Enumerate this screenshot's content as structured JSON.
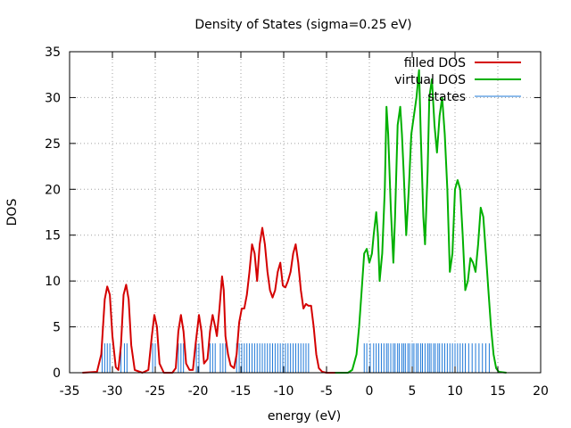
{
  "chart_data": {
    "type": "line",
    "title": "Density of States (sigma=0.25 eV)",
    "xlabel": "energy (eV)",
    "ylabel": "DOS",
    "xlim": [
      -35,
      20
    ],
    "ylim": [
      0,
      35
    ],
    "xticks": [
      -35,
      -30,
      -25,
      -20,
      -15,
      -10,
      -5,
      0,
      5,
      10,
      15,
      20
    ],
    "yticks": [
      0,
      5,
      10,
      15,
      20,
      25,
      30,
      35
    ],
    "grid": true,
    "legend_position": "top-right",
    "series": [
      {
        "name": "filled DOS",
        "color": "#d40000",
        "points": [
          [
            -33.5,
            0
          ],
          [
            -31.8,
            0.1
          ],
          [
            -31.3,
            2
          ],
          [
            -30.9,
            8
          ],
          [
            -30.6,
            9.4
          ],
          [
            -30.3,
            8.5
          ],
          [
            -30.0,
            4
          ],
          [
            -29.6,
            0.6
          ],
          [
            -29.3,
            0.3
          ],
          [
            -29.0,
            3
          ],
          [
            -28.7,
            8.5
          ],
          [
            -28.4,
            9.6
          ],
          [
            -28.1,
            8
          ],
          [
            -27.8,
            3
          ],
          [
            -27.4,
            0.3
          ],
          [
            -26.5,
            0
          ],
          [
            -25.8,
            0.3
          ],
          [
            -25.4,
            4
          ],
          [
            -25.1,
            6.3
          ],
          [
            -24.8,
            5
          ],
          [
            -24.5,
            1
          ],
          [
            -24.0,
            0
          ],
          [
            -23.0,
            0
          ],
          [
            -22.6,
            0.5
          ],
          [
            -22.3,
            4.5
          ],
          [
            -22.0,
            6.3
          ],
          [
            -21.7,
            4.5
          ],
          [
            -21.4,
            1
          ],
          [
            -21.0,
            0.3
          ],
          [
            -20.6,
            0.3
          ],
          [
            -20.3,
            3
          ],
          [
            -19.9,
            6.3
          ],
          [
            -19.6,
            4.5
          ],
          [
            -19.3,
            1
          ],
          [
            -18.9,
            1.5
          ],
          [
            -18.6,
            4.5
          ],
          [
            -18.3,
            6.3
          ],
          [
            -18.0,
            5
          ],
          [
            -17.8,
            4
          ],
          [
            -17.5,
            7
          ],
          [
            -17.2,
            10.5
          ],
          [
            -17.0,
            9
          ],
          [
            -16.8,
            4
          ],
          [
            -16.5,
            2
          ],
          [
            -16.2,
            0.8
          ],
          [
            -15.8,
            0.5
          ],
          [
            -15.5,
            2
          ],
          [
            -15.2,
            5.5
          ],
          [
            -14.9,
            7
          ],
          [
            -14.6,
            7
          ],
          [
            -14.3,
            8.5
          ],
          [
            -14.0,
            11
          ],
          [
            -13.7,
            14
          ],
          [
            -13.4,
            13
          ],
          [
            -13.1,
            10
          ],
          [
            -12.8,
            14
          ],
          [
            -12.5,
            15.8
          ],
          [
            -12.2,
            14
          ],
          [
            -11.9,
            11
          ],
          [
            -11.6,
            9
          ],
          [
            -11.3,
            8.2
          ],
          [
            -11.0,
            9
          ],
          [
            -10.7,
            11
          ],
          [
            -10.4,
            12
          ],
          [
            -10.1,
            9.5
          ],
          [
            -9.8,
            9.3
          ],
          [
            -9.5,
            10
          ],
          [
            -9.2,
            11
          ],
          [
            -8.9,
            13
          ],
          [
            -8.6,
            14
          ],
          [
            -8.3,
            12
          ],
          [
            -8.0,
            9
          ],
          [
            -7.7,
            7
          ],
          [
            -7.4,
            7.5
          ],
          [
            -7.1,
            7.3
          ],
          [
            -6.8,
            7.3
          ],
          [
            -6.5,
            5
          ],
          [
            -6.2,
            2
          ],
          [
            -5.9,
            0.5
          ],
          [
            -5.5,
            0.1
          ],
          [
            -5.0,
            0
          ],
          [
            -3.0,
            0
          ]
        ]
      },
      {
        "name": "virtual DOS",
        "color": "#00b000",
        "points": [
          [
            -4.0,
            0
          ],
          [
            -2.5,
            0
          ],
          [
            -2.0,
            0.3
          ],
          [
            -1.5,
            2
          ],
          [
            -1.2,
            5
          ],
          [
            -0.9,
            9
          ],
          [
            -0.6,
            13
          ],
          [
            -0.3,
            13.5
          ],
          [
            0.0,
            12
          ],
          [
            0.3,
            13
          ],
          [
            0.5,
            15
          ],
          [
            0.8,
            17.5
          ],
          [
            1.0,
            15
          ],
          [
            1.2,
            10
          ],
          [
            1.5,
            13
          ],
          [
            1.8,
            20
          ],
          [
            2.0,
            29
          ],
          [
            2.2,
            26
          ],
          [
            2.5,
            18
          ],
          [
            2.8,
            12
          ],
          [
            3.0,
            17
          ],
          [
            3.3,
            27
          ],
          [
            3.6,
            29
          ],
          [
            3.8,
            26
          ],
          [
            4.0,
            22
          ],
          [
            4.3,
            15
          ],
          [
            4.6,
            20
          ],
          [
            4.9,
            26
          ],
          [
            5.2,
            28
          ],
          [
            5.5,
            30
          ],
          [
            5.8,
            33
          ],
          [
            6.0,
            26
          ],
          [
            6.3,
            17
          ],
          [
            6.5,
            14
          ],
          [
            6.8,
            22
          ],
          [
            7.0,
            30
          ],
          [
            7.3,
            32
          ],
          [
            7.6,
            27
          ],
          [
            7.9,
            24
          ],
          [
            8.2,
            28
          ],
          [
            8.5,
            30
          ],
          [
            8.8,
            26
          ],
          [
            9.1,
            20
          ],
          [
            9.4,
            11
          ],
          [
            9.7,
            13
          ],
          [
            10.0,
            20
          ],
          [
            10.3,
            21
          ],
          [
            10.6,
            20
          ],
          [
            10.9,
            15
          ],
          [
            11.2,
            9
          ],
          [
            11.5,
            10
          ],
          [
            11.8,
            12.5
          ],
          [
            12.1,
            12
          ],
          [
            12.4,
            11
          ],
          [
            12.7,
            14
          ],
          [
            13.0,
            18
          ],
          [
            13.3,
            17
          ],
          [
            13.6,
            13
          ],
          [
            13.9,
            9
          ],
          [
            14.2,
            5
          ],
          [
            14.5,
            2
          ],
          [
            14.8,
            0.5
          ],
          [
            15.1,
            0.1
          ],
          [
            16.0,
            0
          ]
        ]
      },
      {
        "name": "states",
        "color": "#1e78d8",
        "type": "impulses",
        "height": 3.2,
        "points": [
          -31.2,
          -30.9,
          -30.6,
          -30.3,
          -29.0,
          -28.6,
          -28.3,
          -25.3,
          -25.0,
          -22.3,
          -22.0,
          -21.7,
          -20.2,
          -19.9,
          -18.6,
          -18.3,
          -18.0,
          -17.4,
          -17.1,
          -16.8,
          -15.5,
          -15.2,
          -14.9,
          -14.6,
          -14.3,
          -14.0,
          -13.7,
          -13.4,
          -13.1,
          -12.8,
          -12.5,
          -12.2,
          -11.9,
          -11.6,
          -11.3,
          -11.0,
          -10.7,
          -10.4,
          -10.1,
          -9.8,
          -9.5,
          -9.2,
          -8.9,
          -8.6,
          -8.3,
          -8.0,
          -7.7,
          -7.4,
          -7.1,
          -0.6,
          -0.3,
          0.1,
          0.5,
          0.8,
          1.1,
          1.4,
          1.7,
          2.0,
          2.2,
          2.5,
          2.8,
          3.0,
          3.3,
          3.5,
          3.8,
          4.0,
          4.2,
          4.5,
          4.7,
          5.0,
          5.2,
          5.5,
          5.7,
          6.0,
          6.2,
          6.5,
          6.8,
          7.0,
          7.2,
          7.5,
          7.7,
          8.0,
          8.2,
          8.5,
          8.8,
          9.1,
          9.4,
          9.7,
          10.0,
          10.3,
          10.6,
          10.9,
          11.2,
          11.6,
          12.0,
          12.4,
          12.8,
          13.2,
          13.6,
          14.0
        ]
      }
    ]
  }
}
